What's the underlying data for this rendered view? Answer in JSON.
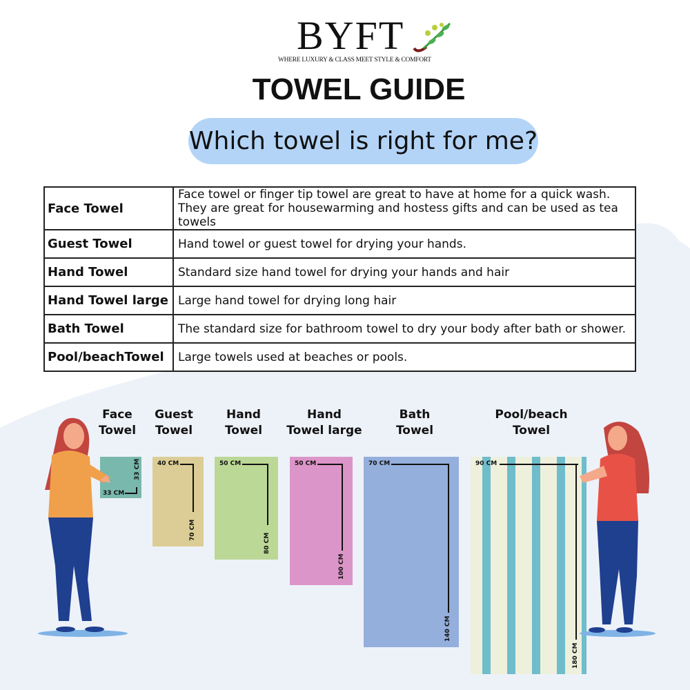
{
  "brand": {
    "name": "BYFT",
    "tagline": "WHERE LUXURY & CLASS MEET STYLE & COMFORT"
  },
  "title": "TOWEL GUIDE",
  "subtitle": "Which towel is right for me?",
  "table": [
    {
      "name": "Face Towel",
      "desc": [
        "Face towel or finger tip towel are great to have at home for a quick wash.",
        "They are great for housewarming and hostess gifts and can be used as tea towels"
      ]
    },
    {
      "name": "Guest Towel",
      "desc": [
        "Hand towel or guest towel for drying your hands."
      ]
    },
    {
      "name": "Hand Towel",
      "desc": [
        "Standard size hand towel for drying your hands and hair"
      ]
    },
    {
      "name": "Hand Towel large",
      "desc": [
        "Large hand towel for drying long hair"
      ]
    },
    {
      "name": "Bath Towel",
      "desc": [
        "The standard size for bathroom towel to dry your body after bath or shower."
      ]
    },
    {
      "name": "Pool/beachTowel",
      "desc": [
        "Large towels used at beaches or pools."
      ]
    }
  ],
  "towels": [
    {
      "label": [
        "Face",
        "Towel"
      ],
      "width": "33 CM",
      "height": "33 CM",
      "color": "#79b8ad"
    },
    {
      "label": [
        "Guest",
        "Towel"
      ],
      "width": "40 CM",
      "height": "70 CM",
      "color": "#dccd96"
    },
    {
      "label": [
        "Hand",
        "Towel"
      ],
      "width": "50 CM",
      "height": "80 CM",
      "color": "#bcd896"
    },
    {
      "label": [
        "Hand",
        "Towel large"
      ],
      "width": "50 CM",
      "height": "100 CM",
      "color": "#dc95c8"
    },
    {
      "label": [
        "Bath",
        "Towel"
      ],
      "width": "70 CM",
      "height": "140 CM",
      "color": "#95afdc"
    },
    {
      "label": [
        "Pool/beach",
        "Towel"
      ],
      "width": "90 CM",
      "height": "180 CM",
      "color": "#eef0dc",
      "stripe": "#6fbccb"
    }
  ],
  "colors": {
    "pill": "#b3d4f7",
    "background_blob": "#edf2f9"
  }
}
